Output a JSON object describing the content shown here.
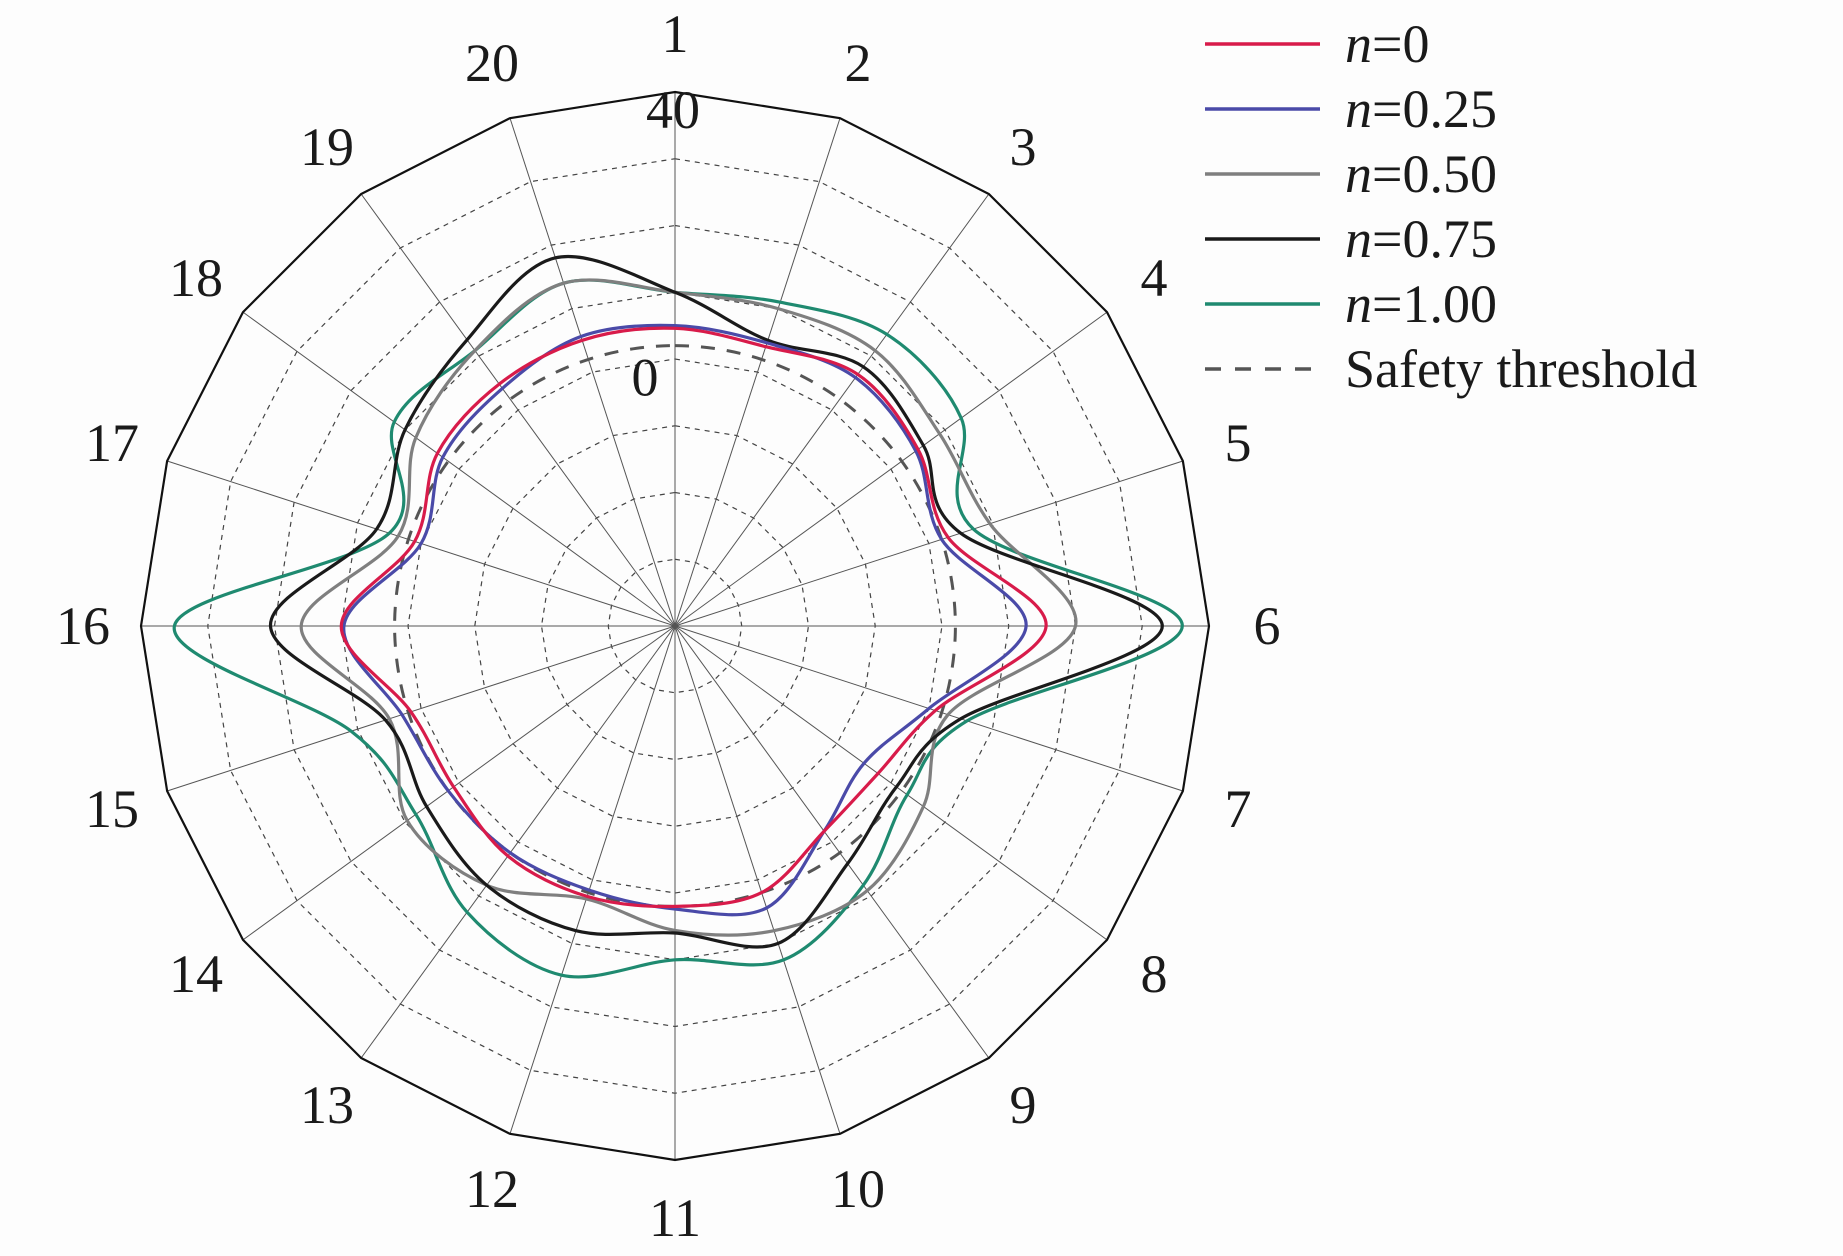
{
  "chart_data": {
    "type": "radar",
    "categories": [
      "1",
      "2",
      "3",
      "4",
      "5",
      "6",
      "7",
      "8",
      "9",
      "10",
      "11",
      "12",
      "13",
      "14",
      "15",
      "16",
      "17",
      "18",
      "19",
      "20"
    ],
    "r_range": [
      0,
      40
    ],
    "r_tick_labels": [
      "0",
      "40"
    ],
    "grid": true,
    "legend_position": "top-right",
    "series": [
      {
        "name": "n=0",
        "color": "#d81b4a",
        "dash": "solid",
        "values": [
          22.3,
          22.0,
          23.3,
          22.5,
          21.5,
          27.8,
          20.5,
          18.8,
          19.0,
          21.0,
          21.0,
          21.3,
          21.3,
          20.5,
          20.8,
          25.0,
          20.5,
          22.0,
          22.4,
          22.5
        ]
      },
      {
        "name": "n=0.25",
        "color": "#4a4aa8",
        "dash": "solid",
        "values": [
          22.5,
          22.3,
          23.0,
          22.3,
          21.0,
          26.3,
          20.0,
          17.5,
          19.0,
          22.2,
          21.2,
          20.8,
          21.0,
          21.0,
          21.5,
          24.8,
          20.0,
          21.5,
          22.0,
          22.8
        ]
      },
      {
        "name": "n=0.50",
        "color": "#7f7f7f",
        "dash": "solid",
        "values": [
          25.0,
          25.0,
          25.5,
          24.5,
          24.8,
          30.0,
          21.5,
          23.0,
          24.5,
          24.0,
          22.8,
          21.5,
          24.0,
          24.8,
          22.5,
          28.0,
          21.8,
          24.0,
          25.5,
          27.0
        ]
      },
      {
        "name": "n=0.75",
        "color": "#1a1a1a",
        "dash": "solid",
        "values": [
          25.0,
          22.5,
          24.0,
          23.0,
          22.5,
          36.5,
          22.5,
          20.5,
          22.0,
          25.0,
          23.0,
          24.0,
          24.0,
          23.0,
          22.8,
          30.3,
          23.5,
          25.0,
          26.5,
          29.0
        ]
      },
      {
        "name": "n=1.00",
        "color": "#1f8a70",
        "dash": "solid",
        "values": [
          25.0,
          25.5,
          27.0,
          26.5,
          23.5,
          38.0,
          23.0,
          21.5,
          24.0,
          26.3,
          25.0,
          27.5,
          26.5,
          24.0,
          25.5,
          37.5,
          22.5,
          26.0,
          25.5,
          27.0
        ]
      },
      {
        "name": "Safety threshold",
        "color": "#555555",
        "dash": "dashed",
        "values": [
          21.0,
          21.0,
          21.0,
          21.0,
          21.0,
          21.0,
          21.0,
          21.0,
          21.0,
          21.0,
          21.0,
          21.0,
          21.0,
          21.0,
          21.0,
          21.0,
          21.0,
          21.0,
          21.0,
          21.0
        ]
      }
    ]
  },
  "legend": {
    "items": [
      {
        "var": "n",
        "rest": "=0"
      },
      {
        "var": "n",
        "rest": "=0.25"
      },
      {
        "var": "n",
        "rest": "=0.50"
      },
      {
        "var": "n",
        "rest": "=0.75"
      },
      {
        "var": "n",
        "rest": "=1.00"
      },
      {
        "var": "",
        "rest": "Safety threshold"
      }
    ]
  }
}
